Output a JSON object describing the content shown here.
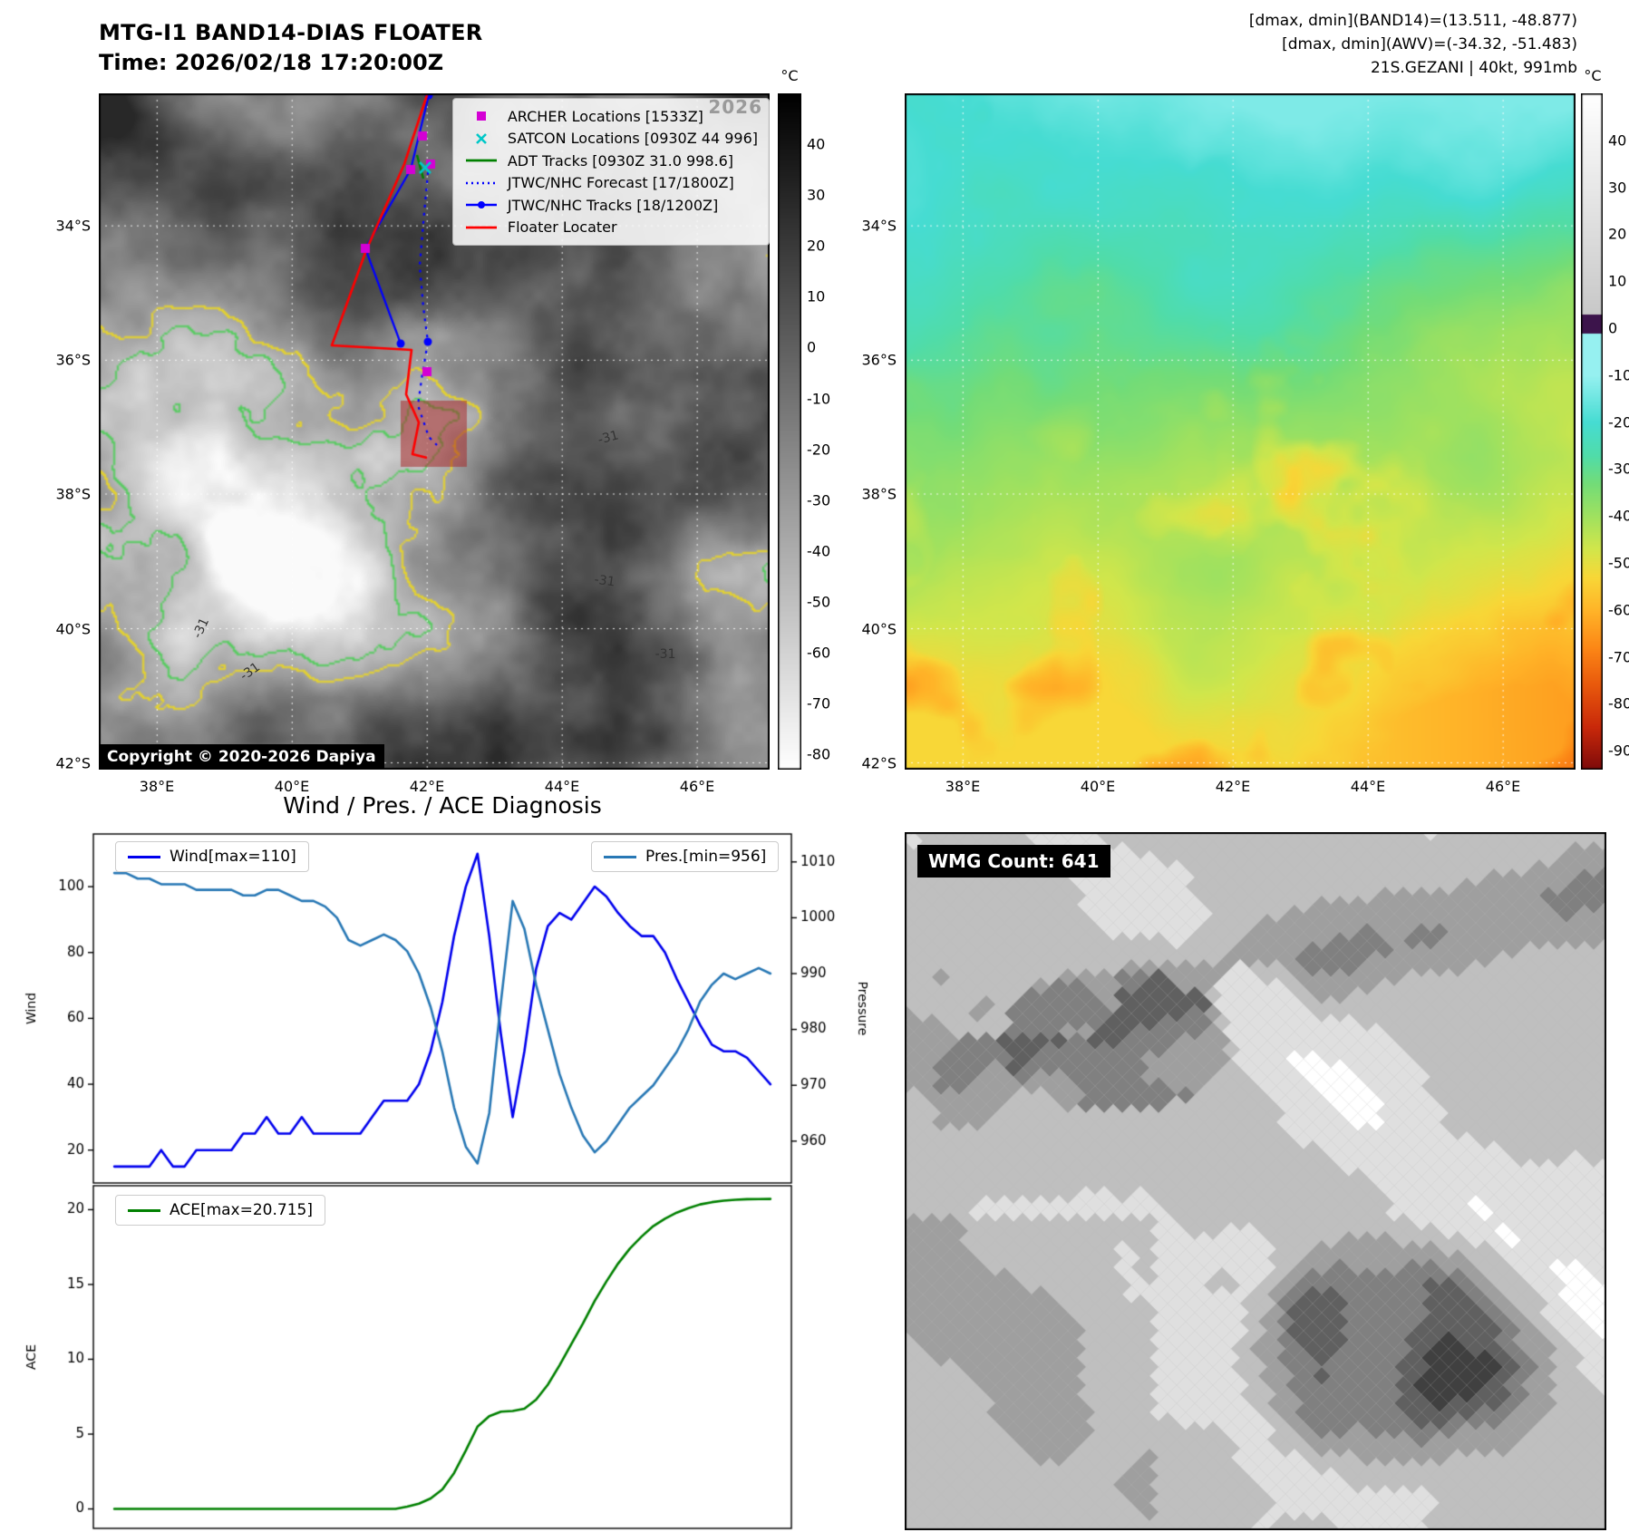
{
  "panel_band14": {
    "title": "MTG-I1 BAND14-DIAS FLOATER",
    "time_label": "Time: 2026/02/18 17:20:00Z",
    "watermark": "2026",
    "copyright": "Copyright © 2020-2026 Dapiya",
    "contour_label": "-31",
    "colorbar_unit": "°C",
    "colorbar_ticks": [
      40,
      30,
      20,
      10,
      0,
      -10,
      -20,
      -30,
      -40,
      -50,
      -60,
      -70,
      -80
    ],
    "lat_ticks": [
      "34°S",
      "36°S",
      "38°S",
      "40°S",
      "42°S"
    ],
    "lon_ticks": [
      "38°E",
      "40°E",
      "42°E",
      "44°E",
      "46°E"
    ],
    "legend_items": [
      {
        "label": "ARCHER Locations [1533Z]",
        "marker": "square",
        "color": "#d400d4"
      },
      {
        "label": "SATCON Locations [0930Z 44 996]",
        "marker": "x",
        "color": "#00c8c8"
      },
      {
        "label": "ADT Tracks [0930Z 31.0 998.6]",
        "marker": "line",
        "color": "#008000"
      },
      {
        "label": "JTWC/NHC Forecast [17/1800Z]",
        "marker": "dotted",
        "color": "#0000ff"
      },
      {
        "label": "JTWC/NHC Tracks [18/1200Z]",
        "marker": "line-circle",
        "color": "#0000ff"
      },
      {
        "label": "Floater Locater",
        "marker": "line",
        "color": "#ff0000"
      }
    ]
  },
  "panel_awv": {
    "header_lines": [
      "[dmax, dmin](BAND14)=(13.511, -48.877)",
      "[dmax, dmin](AWV)=(-34.32, -51.483)",
      "21S.GEZANI | 40kt, 991mb"
    ],
    "colorbar_unit": "°C",
    "colorbar_ticks": [
      40,
      30,
      20,
      10,
      0,
      -10,
      -20,
      -30,
      -40,
      -50,
      -60,
      -70,
      -80,
      -90
    ],
    "lat_ticks": [
      "34°S",
      "36°S",
      "38°S",
      "40°S",
      "42°S"
    ],
    "lon_ticks": [
      "38°E",
      "40°E",
      "42°E",
      "44°E",
      "46°E"
    ]
  },
  "panel_diagnosis": {
    "title": "Wind / Pres. / ACE Diagnosis"
  },
  "panel_wmg": {
    "label": "WMG Count: 641"
  },
  "chart_data": [
    {
      "type": "line",
      "title": "Wind / Pres. / ACE Diagnosis",
      "legend": [
        "Wind[max=110]",
        "Pres.[min=956]"
      ],
      "ylabel_left": "Wind",
      "ylabel_right": "Pressure",
      "ylim_left": [
        10,
        116
      ],
      "yticks_left": [
        20,
        40,
        60,
        80,
        100
      ],
      "ylim_right": [
        952.5,
        1015
      ],
      "yticks_right": [
        960,
        970,
        980,
        990,
        1000,
        1010
      ],
      "series": [
        {
          "name": "Wind",
          "axis": "left",
          "color": "#0000ee",
          "max": 110,
          "values": [
            15,
            15,
            15,
            15,
            20,
            15,
            15,
            20,
            20,
            20,
            20,
            25,
            25,
            30,
            25,
            25,
            30,
            25,
            25,
            25,
            25,
            25,
            30,
            35,
            35,
            35,
            40,
            50,
            65,
            85,
            100,
            110,
            85,
            55,
            30,
            50,
            75,
            88,
            92,
            90,
            95,
            100,
            97,
            92,
            88,
            85,
            85,
            80,
            72,
            65,
            58,
            52,
            50,
            50,
            48,
            44,
            40
          ]
        },
        {
          "name": "Pres.",
          "axis": "right",
          "color": "#2878b5",
          "min": 956,
          "values": [
            1008,
            1008,
            1007,
            1007,
            1006,
            1006,
            1006,
            1005,
            1005,
            1005,
            1005,
            1004,
            1004,
            1005,
            1005,
            1004,
            1003,
            1003,
            1002,
            1000,
            996,
            995,
            996,
            997,
            996,
            994,
            990,
            984,
            976,
            966,
            959,
            956,
            965,
            985,
            1003,
            998,
            988,
            980,
            972,
            966,
            961,
            958,
            960,
            963,
            966,
            968,
            970,
            973,
            976,
            980,
            985,
            988,
            990,
            989,
            990,
            991,
            990
          ]
        }
      ]
    },
    {
      "type": "line",
      "legend": [
        "ACE[max=20.715]"
      ],
      "ylabel_left": "ACE",
      "ylim_left": [
        -1.3,
        21.6
      ],
      "yticks_left": [
        0,
        5,
        10,
        15,
        20
      ],
      "series": [
        {
          "name": "ACE",
          "axis": "left",
          "color": "#008000",
          "max": 20.715,
          "values": [
            0,
            0,
            0,
            0,
            0,
            0,
            0,
            0,
            0,
            0,
            0,
            0,
            0,
            0,
            0,
            0,
            0,
            0,
            0,
            0,
            0,
            0,
            0,
            0,
            0,
            0.15,
            0.35,
            0.7,
            1.3,
            2.4,
            3.9,
            5.5,
            6.2,
            6.5,
            6.55,
            6.7,
            7.3,
            8.3,
            9.6,
            11.0,
            12.4,
            13.9,
            15.2,
            16.4,
            17.4,
            18.2,
            18.9,
            19.4,
            19.8,
            20.1,
            20.35,
            20.5,
            20.6,
            20.66,
            20.7,
            20.71,
            20.715
          ]
        }
      ]
    }
  ]
}
